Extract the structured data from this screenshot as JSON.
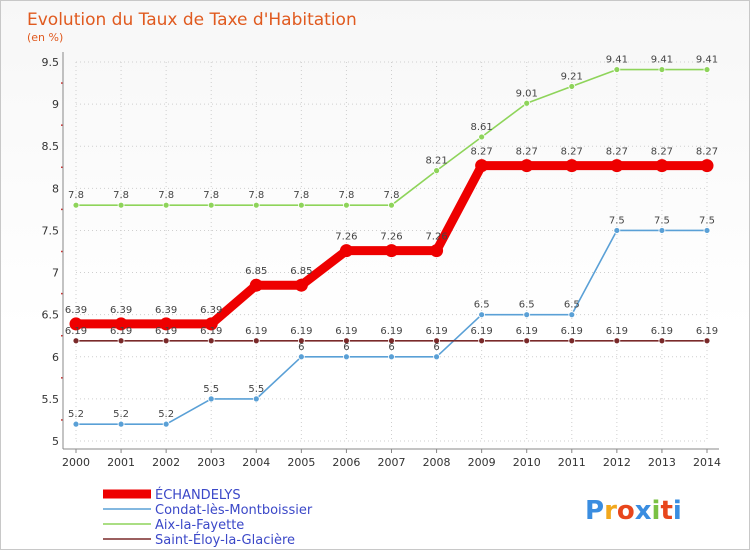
{
  "chart_data": {
    "type": "line",
    "title": "Evolution du Taux de Taxe d'Habitation",
    "subtitle": "(en %)",
    "xlabel": "",
    "ylabel": "",
    "categories": [
      "2000",
      "2001",
      "2002",
      "2003",
      "2004",
      "2005",
      "2006",
      "2007",
      "2008",
      "2009",
      "2010",
      "2011",
      "2012",
      "2013",
      "2014"
    ],
    "ylim": [
      5,
      9.5
    ],
    "yticks": [
      "5",
      "5.5",
      "6",
      "6.5",
      "7",
      "7.5",
      "8",
      "8.5",
      "9",
      "9.5"
    ],
    "legend_position": "bottom-left",
    "series": [
      {
        "name": "ÉCHANDELYS",
        "color": "#ee0000",
        "bold": true,
        "values": [
          6.39,
          6.39,
          6.39,
          6.39,
          6.85,
          6.85,
          7.26,
          7.26,
          7.26,
          8.27,
          8.27,
          8.27,
          8.27,
          8.27,
          8.27
        ],
        "labels": [
          "6.39",
          "6.39",
          "6.39",
          "6.39",
          "6.85",
          "6.85",
          "7.26",
          "7.26",
          "7.26",
          "8.27",
          "8.27",
          "8.27",
          "8.27",
          "8.27",
          "8.27"
        ]
      },
      {
        "name": "Condat-lès-Montboissier",
        "color": "#5aa0d6",
        "bold": false,
        "values": [
          5.2,
          5.2,
          5.2,
          5.5,
          5.5,
          6,
          6,
          6,
          6,
          6.5,
          6.5,
          6.5,
          7.5,
          7.5,
          7.5
        ],
        "labels": [
          "5.2",
          "5.2",
          "5.2",
          "5.5",
          "5.5",
          "6",
          "6",
          "6",
          "6",
          "6.5",
          "6.5",
          "6.5",
          "7.5",
          "7.5",
          "7.5"
        ]
      },
      {
        "name": "Aix-la-Fayette",
        "color": "#8ed45a",
        "bold": false,
        "values": [
          7.8,
          7.8,
          7.8,
          7.8,
          7.8,
          7.8,
          7.8,
          7.8,
          8.21,
          8.61,
          9.01,
          9.21,
          9.41,
          9.41,
          9.41
        ],
        "labels": [
          "7.8",
          "7.8",
          "7.8",
          "7.8",
          "7.8",
          "7.8",
          "7.8",
          "7.8",
          "8.21",
          "8.61",
          "9.01",
          "9.21",
          "9.41",
          "9.41",
          "9.41"
        ]
      },
      {
        "name": "Saint-Éloy-la-Glacière",
        "color": "#7a2a2a",
        "bold": false,
        "values": [
          6.19,
          6.19,
          6.19,
          6.19,
          6.19,
          6.19,
          6.19,
          6.19,
          6.19,
          6.19,
          6.19,
          6.19,
          6.19,
          6.19,
          6.19
        ],
        "labels": [
          "6.19",
          "6.19",
          "6.19",
          "6.19",
          "6.19",
          "6.19",
          "6.19",
          "6.19",
          "6.19",
          "6.19",
          "6.19",
          "6.19",
          "6.19",
          "6.19",
          "6.19"
        ]
      }
    ]
  },
  "branding": {
    "logo_text": "Proxiti",
    "logo_colors": [
      "#3a8de0",
      "#f2a81d",
      "#e8461c",
      "#3a8de0",
      "#7ac143",
      "#e8461c",
      "#3a8de0"
    ]
  }
}
